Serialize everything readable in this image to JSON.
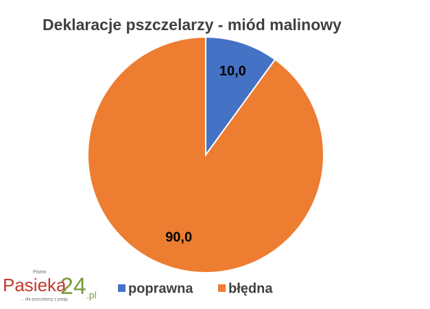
{
  "chart_data": {
    "type": "pie",
    "title": "Deklaracje pszczelarzy - miód malinowy",
    "categories": [
      "poprawna",
      "błędna"
    ],
    "values": [
      10,
      90
    ],
    "value_labels": [
      "10,0",
      "90,0"
    ],
    "colors": [
      "#4472c4",
      "#ed7d31"
    ],
    "legend": "bottom"
  },
  "watermark": {
    "top": "Pismo",
    "brand": "Pasieka",
    "number": "24",
    "domain": ".pl",
    "tagline": "... dla pszczelarzy z pasją"
  }
}
